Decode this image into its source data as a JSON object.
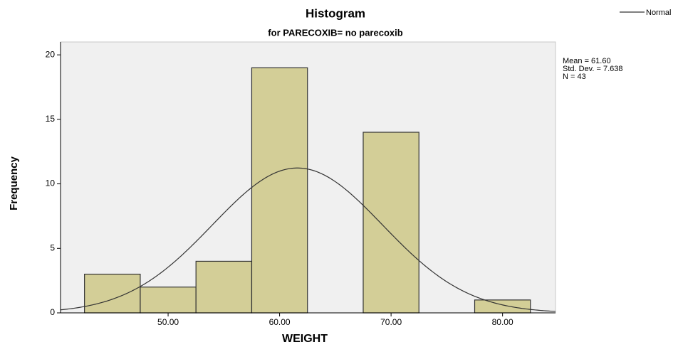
{
  "chart_data": {
    "type": "histogram",
    "title": "Histogram",
    "subtitle": "for PARECOXIB= no parecoxib",
    "x_label": "WEIGHT",
    "y_label": "Frequency",
    "bins": [
      42.5,
      47.5,
      52.5,
      57.5,
      62.5,
      67.5,
      72.5,
      77.5,
      82.5
    ],
    "values": [
      3,
      2,
      4,
      19,
      0,
      14,
      0,
      1
    ],
    "color": "#d3ce97",
    "xlim": [
      40.35,
      84.75
    ],
    "ylim": [
      0,
      21
    ],
    "xticks": [
      {
        "value": 50,
        "label": "50.00"
      },
      {
        "value": 60,
        "label": "60.00"
      },
      {
        "value": 70,
        "label": "70.00"
      },
      {
        "value": 80,
        "label": "80.00"
      }
    ],
    "yticks": [
      0,
      5,
      10,
      15,
      20
    ],
    "legend": {
      "name": "Normal",
      "position": "top-right"
    },
    "stats": {
      "mean": {
        "value": 61.6,
        "label": "Mean = 61.60"
      },
      "sd": {
        "value": 7.638,
        "label": "Std. Dev. = 7.638"
      },
      "n": {
        "value": 43,
        "label": "N = 43"
      }
    }
  }
}
